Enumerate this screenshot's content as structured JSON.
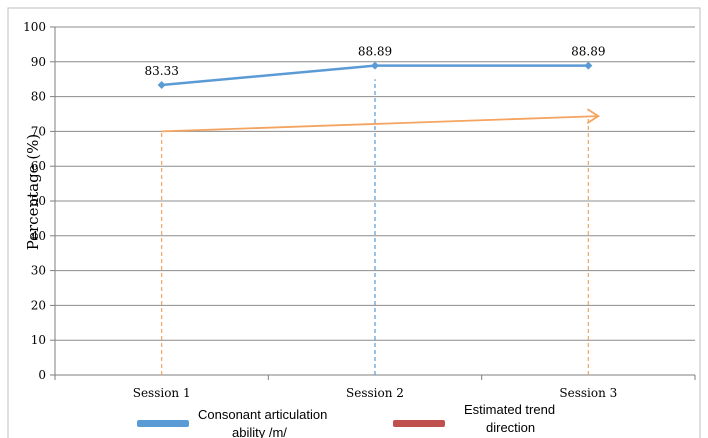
{
  "chart_data": {
    "type": "line",
    "categories": [
      "Session 1",
      "Session 2",
      "Session 3"
    ],
    "ylabel": "Percentage (%)",
    "ylim": [
      0,
      100
    ],
    "yticks": [
      0,
      10,
      20,
      30,
      40,
      50,
      60,
      70,
      80,
      90,
      100
    ],
    "grid": true,
    "legend_position": "bottom",
    "series": [
      {
        "name": "Consonant articulation ability /m/",
        "values": [
          83.33,
          88.89,
          88.89
        ],
        "labels": [
          "83.33",
          "88.89",
          "88.89"
        ],
        "color": "#5B9BD5"
      },
      {
        "name": "Estimated trend direction",
        "values": [
          70,
          72,
          74.3
        ],
        "color": "#F4A460",
        "legend_color": "#C0504D"
      }
    ],
    "dashed_guides": [
      {
        "category": "Session 1",
        "from_value": 0,
        "to_value": 70,
        "color": "#F4A460"
      },
      {
        "category": "Session 2",
        "from_value": 0,
        "to_value": 85,
        "color": "#5B9BD5"
      },
      {
        "category": "Session 3",
        "from_value": 0,
        "to_value": 74.3,
        "color": "#F4A460"
      }
    ]
  }
}
